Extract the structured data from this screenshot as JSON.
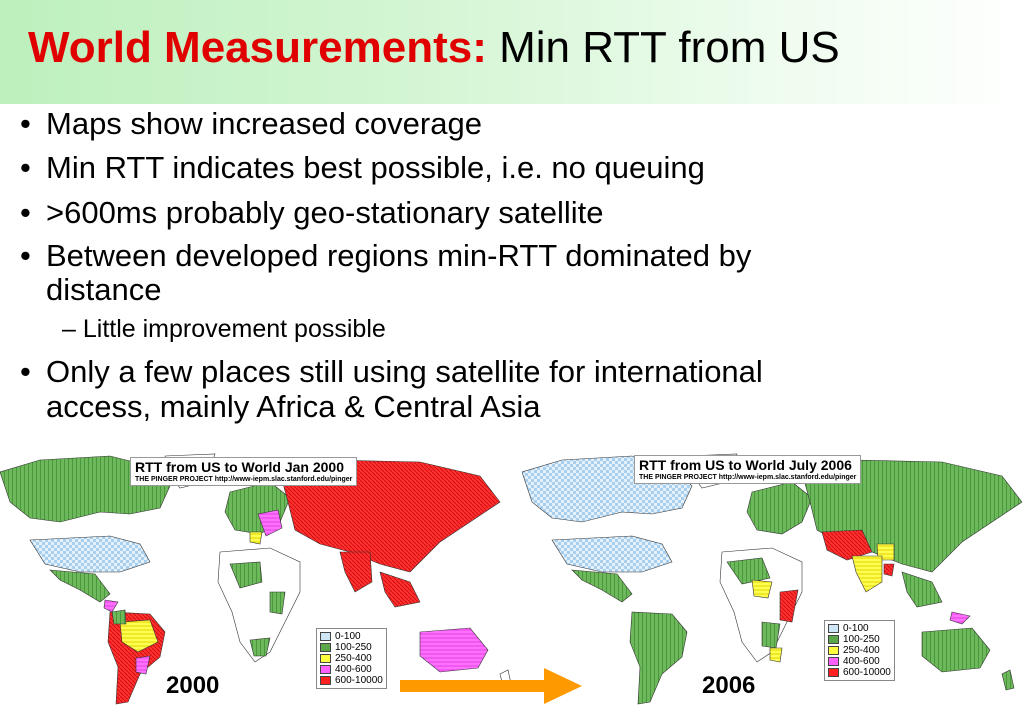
{
  "slide": {
    "title_part1": "World Measurements:",
    "title_part2": "Min RTT from US"
  },
  "bullets": [
    "Maps show increased coverage",
    "Min RTT indicates best possible, i.e. no queuing",
    ">600ms probably geo-stationary satellite",
    "Between developed regions min-RTT dominated by",
    "distance",
    "Only a few places still using satellite for international",
    "access, mainly Africa & Central Asia"
  ],
  "sub_bullet": {
    "dash": "–",
    "text": "Little improvement  possible"
  },
  "bullet_marker": "•",
  "maps": [
    {
      "title": "RTT from US to World Jan 2000",
      "subtitle": "THE PINGER PROJECT http://www-iepm.slac.stanford.edu/pinger",
      "year": "2000"
    },
    {
      "title": "RTT from US to World July 2006",
      "subtitle": "THE PINGER PROJECT http://www-iepm.slac.stanford.edu/pinger",
      "year": "2006"
    }
  ],
  "legend": [
    {
      "label": "0-100",
      "color": "#cfe6f7"
    },
    {
      "label": "100-250",
      "color": "#5aa84a"
    },
    {
      "label": "250-400",
      "color": "#ffff40"
    },
    {
      "label": "400-600",
      "color": "#ff60ff"
    },
    {
      "label": "600-10000",
      "color": "#ff2020"
    }
  ],
  "colors": {
    "title_red": "#e00000",
    "arrow": "#ff9900",
    "land_green": "#5aa84a",
    "land_blue": "#cfe6f7",
    "land_red": "#ff2020",
    "land_yellow": "#ffff40",
    "land_magenta": "#ff60ff"
  },
  "arrow_icon": "right-arrow-icon"
}
